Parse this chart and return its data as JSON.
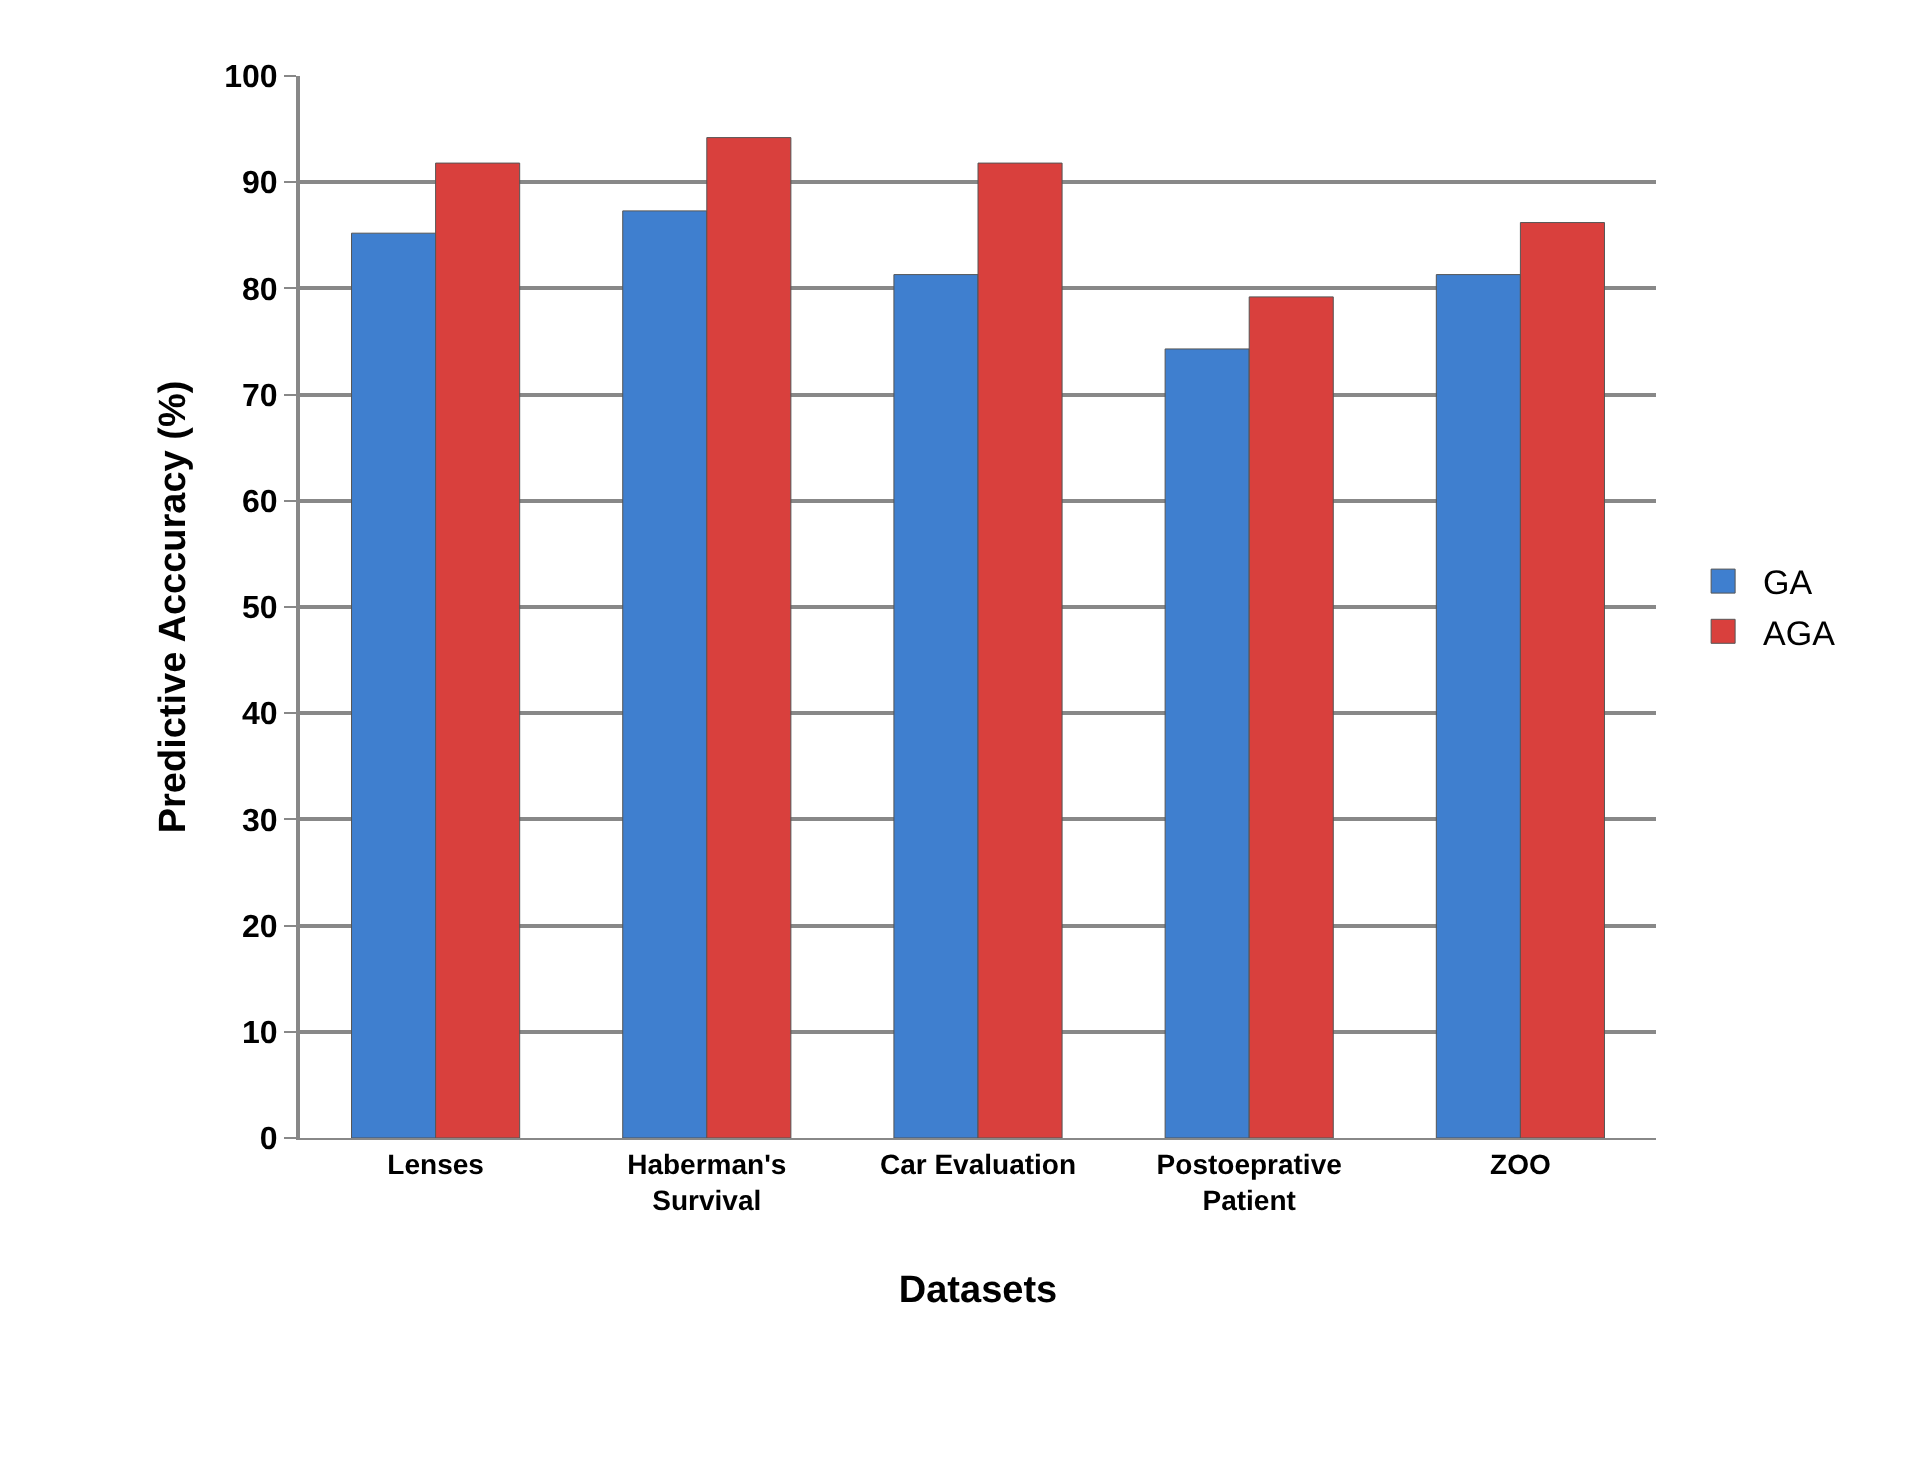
{
  "chart_data": {
    "type": "bar",
    "xlabel": "Datasets",
    "ylabel": "Predictive Acccuracy (%)",
    "categories": [
      "Lenses",
      "Haberman's Survival",
      "Car Evaluation",
      "Postoeprative Patient",
      "ZOO"
    ],
    "series": [
      {
        "name": "GA",
        "color": "#3f7fcf",
        "values": [
          85.2,
          87.3,
          81.3,
          74.3,
          81.3
        ]
      },
      {
        "name": "AGA",
        "color": "#d9403d",
        "values": [
          91.8,
          94.2,
          91.8,
          79.2,
          86.2
        ]
      }
    ],
    "ylim": [
      0,
      100
    ],
    "yticks": [
      0,
      10,
      20,
      30,
      40,
      50,
      60,
      70,
      80,
      90,
      100
    ],
    "grid": "y",
    "legend": "right"
  }
}
